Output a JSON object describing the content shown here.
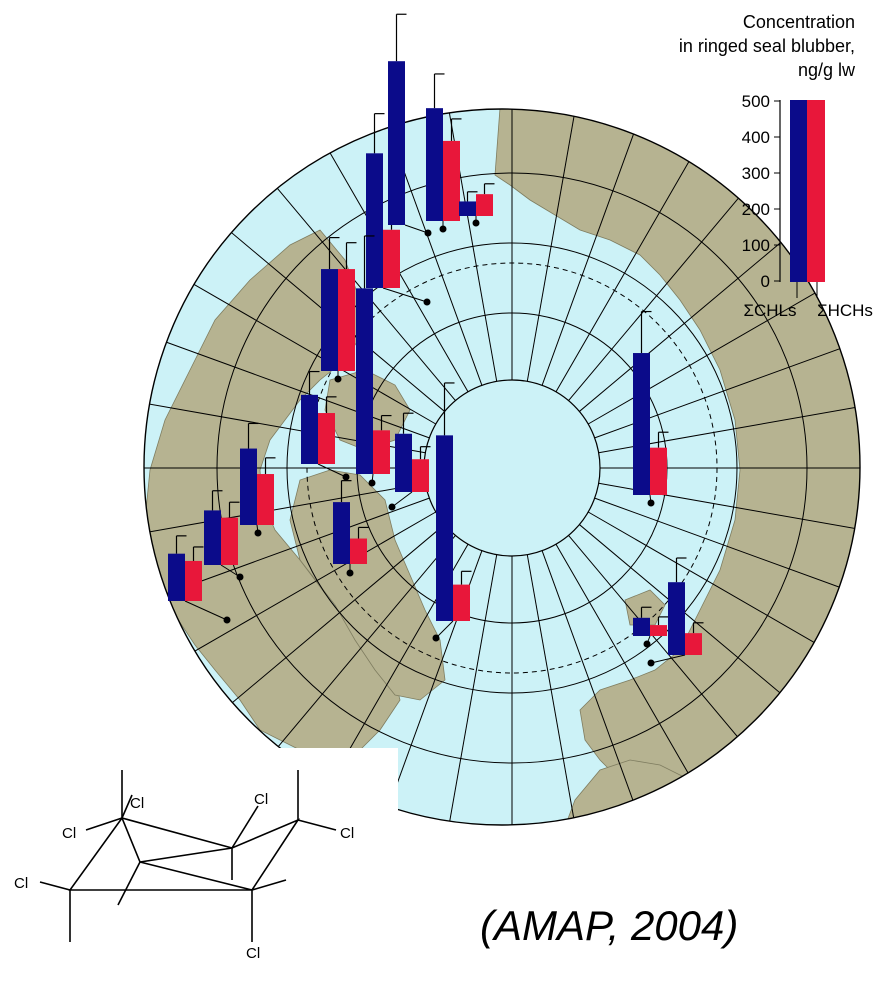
{
  "legend": {
    "title_lines": [
      "Concentration",
      "in ringed seal blubber,",
      "ng/g lw"
    ],
    "ticks": [
      "500",
      "400",
      "300",
      "200",
      "100",
      "0"
    ],
    "series_labels": [
      "ΣCHLs",
      "ΣHCHs"
    ],
    "series_colors": [
      "#0b0b8a",
      "#e8173a"
    ]
  },
  "citation": "(AMAP, 2004)",
  "molecule": {
    "atom_label": "Cl"
  },
  "colors": {
    "ocean": "#ccf2f7",
    "land": "#b6b391",
    "ice": "#ccf2f7",
    "bar_chl": "#0b0b8a",
    "bar_hch": "#e8173a"
  },
  "chart_data": {
    "type": "bar",
    "title": "Concentration in ringed seal blubber, ng/g lw",
    "ylim": [
      0,
      500
    ],
    "series_names": [
      "ΣCHLs",
      "ΣHCHs"
    ],
    "sites": [
      {
        "chl": 130,
        "hch": 110
      },
      {
        "chl": 150,
        "hch": 130
      },
      {
        "chl": 210,
        "hch": 140
      },
      {
        "chl": 190,
        "hch": 140
      },
      {
        "chl": 280,
        "hch": 280
      },
      {
        "chl": 370,
        "hch": 160
      },
      {
        "chl": 170,
        "hch": 70
      },
      {
        "chl": 160,
        "hch": 90
      },
      {
        "chl": 510,
        "hch": 120
      },
      {
        "chl": 450,
        "hch": 0
      },
      {
        "chl": 310,
        "hch": 220
      },
      {
        "chl": 40,
        "hch": 60
      },
      {
        "chl": 510,
        "hch": 100
      },
      {
        "chl": 390,
        "hch": 130
      },
      {
        "chl": 50,
        "hch": 30
      },
      {
        "chl": 200,
        "hch": 60
      }
    ]
  }
}
